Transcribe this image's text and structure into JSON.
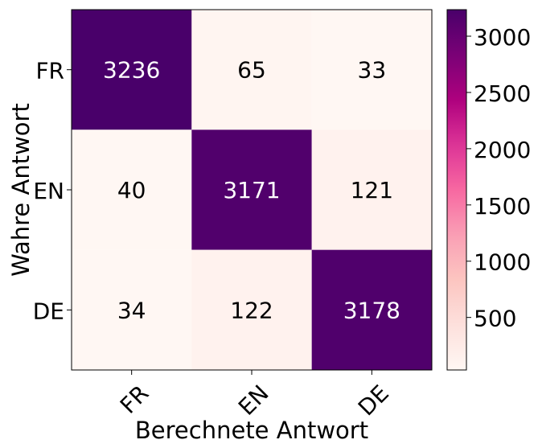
{
  "chart_data": {
    "type": "heatmap",
    "xlabel": "Berechnete Antwort",
    "ylabel": "Wahre Antwort",
    "x_categories": [
      "FR",
      "EN",
      "DE"
    ],
    "y_categories": [
      "FR",
      "EN",
      "DE"
    ],
    "matrix": [
      [
        3236,
        65,
        33
      ],
      [
        40,
        3171,
        121
      ],
      [
        34,
        122,
        3178
      ]
    ],
    "colormap": "RdPu",
    "color_range": [
      33,
      3236
    ],
    "colorbar_ticks": [
      500,
      1000,
      1500,
      2000,
      2500,
      3000
    ],
    "colorbar_tick_labels": [
      "500",
      "1000",
      "1500",
      "2000",
      "2500",
      "3000"
    ],
    "text_color_dark": "#000000",
    "text_color_light": "#ffffff"
  }
}
